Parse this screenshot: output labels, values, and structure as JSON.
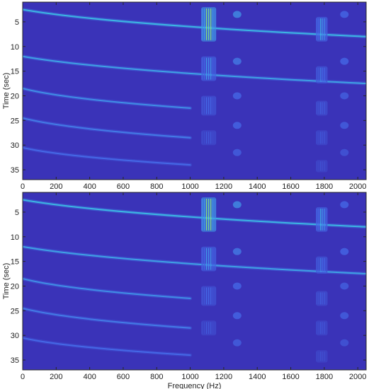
{
  "chart_data": [
    {
      "type": "heatmap",
      "title": "",
      "xlabel": "",
      "ylabel": "Time (sec)",
      "xlim": [
        0,
        2050
      ],
      "ylim": [
        1,
        37
      ],
      "y_reversed": true,
      "xticks": [
        0,
        200,
        400,
        600,
        800,
        1000,
        1200,
        1400,
        1600,
        1800,
        2000
      ],
      "yticks": [
        5,
        10,
        15,
        20,
        25,
        30,
        35
      ],
      "colormap": "jet",
      "background_color": "#3a33b8",
      "features": [
        {
          "kind": "sweep",
          "t_start": 2.5,
          "t_end": 8.0,
          "f_start": 0,
          "f_end": 2050,
          "intensity": 0.55
        },
        {
          "kind": "sweep",
          "t_start": 12.0,
          "t_end": 17.5,
          "f_start": 0,
          "f_end": 2050,
          "intensity": 0.5
        },
        {
          "kind": "sweep",
          "t_start": 18.5,
          "t_end": 22.5,
          "f_start": 0,
          "f_end": 1000,
          "intensity": 0.45
        },
        {
          "kind": "sweep",
          "t_start": 24.5,
          "t_end": 28.5,
          "f_start": 0,
          "f_end": 1000,
          "intensity": 0.4
        },
        {
          "kind": "sweep",
          "t_start": 30.5,
          "t_end": 34.0,
          "f_start": 0,
          "f_end": 1000,
          "intensity": 0.35
        },
        {
          "kind": "band",
          "f_center": 1110,
          "f_width": 90,
          "t_start": 2.0,
          "t_end": 9.0,
          "intensity": 0.85
        },
        {
          "kind": "band",
          "f_center": 1110,
          "f_width": 90,
          "t_start": 12.0,
          "t_end": 17.0,
          "intensity": 0.55
        },
        {
          "kind": "band",
          "f_center": 1110,
          "f_width": 90,
          "t_start": 20.0,
          "t_end": 24.0,
          "intensity": 0.4
        },
        {
          "kind": "band",
          "f_center": 1110,
          "f_width": 90,
          "t_start": 27.0,
          "t_end": 30.0,
          "intensity": 0.3
        },
        {
          "kind": "band",
          "f_center": 1785,
          "f_width": 70,
          "t_start": 4.0,
          "t_end": 9.0,
          "intensity": 0.6
        },
        {
          "kind": "band",
          "f_center": 1785,
          "f_width": 70,
          "t_start": 14.0,
          "t_end": 17.5,
          "intensity": 0.45
        },
        {
          "kind": "band",
          "f_center": 1785,
          "f_width": 70,
          "t_start": 21.0,
          "t_end": 24.0,
          "intensity": 0.35
        },
        {
          "kind": "band",
          "f_center": 1785,
          "f_width": 70,
          "t_start": 27.0,
          "t_end": 30.0,
          "intensity": 0.3
        },
        {
          "kind": "band",
          "f_center": 1785,
          "f_width": 70,
          "t_start": 33.0,
          "t_end": 35.5,
          "intensity": 0.25
        },
        {
          "kind": "spot",
          "f": 1280,
          "t": 3.5,
          "intensity": 0.45
        },
        {
          "kind": "spot",
          "f": 1280,
          "t": 13.0,
          "intensity": 0.4
        },
        {
          "kind": "spot",
          "f": 1280,
          "t": 20.0,
          "intensity": 0.35
        },
        {
          "kind": "spot",
          "f": 1280,
          "t": 26.0,
          "intensity": 0.35
        },
        {
          "kind": "spot",
          "f": 1280,
          "t": 31.5,
          "intensity": 0.3
        },
        {
          "kind": "spot",
          "f": 1920,
          "t": 3.5,
          "intensity": 0.35
        },
        {
          "kind": "spot",
          "f": 1920,
          "t": 13.0,
          "intensity": 0.35
        },
        {
          "kind": "spot",
          "f": 1920,
          "t": 20.0,
          "intensity": 0.3
        },
        {
          "kind": "spot",
          "f": 1920,
          "t": 26.0,
          "intensity": 0.3
        },
        {
          "kind": "spot",
          "f": 1920,
          "t": 31.5,
          "intensity": 0.25
        }
      ]
    },
    {
      "type": "heatmap",
      "title": "",
      "xlabel": "Frequency (Hz)",
      "ylabel": "Time (sec)",
      "xlim": [
        0,
        2050
      ],
      "ylim": [
        1,
        37
      ],
      "y_reversed": true,
      "xticks": [
        0,
        200,
        400,
        600,
        800,
        1000,
        1200,
        1400,
        1600,
        1800,
        2000
      ],
      "yticks": [
        5,
        10,
        15,
        20,
        25,
        30,
        35
      ],
      "colormap": "jet",
      "background_color": "#3a33b8",
      "features": [
        {
          "kind": "sweep",
          "t_start": 2.5,
          "t_end": 8.0,
          "f_start": 0,
          "f_end": 2050,
          "intensity": 0.55
        },
        {
          "kind": "sweep",
          "t_start": 12.0,
          "t_end": 17.5,
          "f_start": 0,
          "f_end": 2050,
          "intensity": 0.5
        },
        {
          "kind": "sweep",
          "t_start": 18.5,
          "t_end": 22.5,
          "f_start": 0,
          "f_end": 1000,
          "intensity": 0.45
        },
        {
          "kind": "sweep",
          "t_start": 24.5,
          "t_end": 28.5,
          "f_start": 0,
          "f_end": 1000,
          "intensity": 0.4
        },
        {
          "kind": "sweep",
          "t_start": 30.5,
          "t_end": 34.0,
          "f_start": 0,
          "f_end": 1000,
          "intensity": 0.35
        },
        {
          "kind": "band",
          "f_center": 1110,
          "f_width": 90,
          "t_start": 2.0,
          "t_end": 9.0,
          "intensity": 0.85
        },
        {
          "kind": "band",
          "f_center": 1110,
          "f_width": 90,
          "t_start": 12.0,
          "t_end": 17.0,
          "intensity": 0.55
        },
        {
          "kind": "band",
          "f_center": 1110,
          "f_width": 90,
          "t_start": 20.0,
          "t_end": 24.0,
          "intensity": 0.4
        },
        {
          "kind": "band",
          "f_center": 1110,
          "f_width": 90,
          "t_start": 27.0,
          "t_end": 30.0,
          "intensity": 0.3
        },
        {
          "kind": "band",
          "f_center": 1785,
          "f_width": 70,
          "t_start": 4.0,
          "t_end": 9.0,
          "intensity": 0.6
        },
        {
          "kind": "band",
          "f_center": 1785,
          "f_width": 70,
          "t_start": 14.0,
          "t_end": 17.5,
          "intensity": 0.45
        },
        {
          "kind": "band",
          "f_center": 1785,
          "f_width": 70,
          "t_start": 21.0,
          "t_end": 24.0,
          "intensity": 0.35
        },
        {
          "kind": "band",
          "f_center": 1785,
          "f_width": 70,
          "t_start": 27.0,
          "t_end": 30.0,
          "intensity": 0.3
        },
        {
          "kind": "band",
          "f_center": 1785,
          "f_width": 70,
          "t_start": 33.0,
          "t_end": 35.5,
          "intensity": 0.25
        },
        {
          "kind": "spot",
          "f": 1280,
          "t": 3.5,
          "intensity": 0.45
        },
        {
          "kind": "spot",
          "f": 1280,
          "t": 13.0,
          "intensity": 0.4
        },
        {
          "kind": "spot",
          "f": 1280,
          "t": 20.0,
          "intensity": 0.35
        },
        {
          "kind": "spot",
          "f": 1280,
          "t": 26.0,
          "intensity": 0.35
        },
        {
          "kind": "spot",
          "f": 1280,
          "t": 31.5,
          "intensity": 0.3
        },
        {
          "kind": "spot",
          "f": 1920,
          "t": 3.5,
          "intensity": 0.35
        },
        {
          "kind": "spot",
          "f": 1920,
          "t": 13.0,
          "intensity": 0.35
        },
        {
          "kind": "spot",
          "f": 1920,
          "t": 20.0,
          "intensity": 0.3
        },
        {
          "kind": "spot",
          "f": 1920,
          "t": 26.0,
          "intensity": 0.3
        },
        {
          "kind": "spot",
          "f": 1920,
          "t": 31.5,
          "intensity": 0.25
        }
      ]
    }
  ]
}
